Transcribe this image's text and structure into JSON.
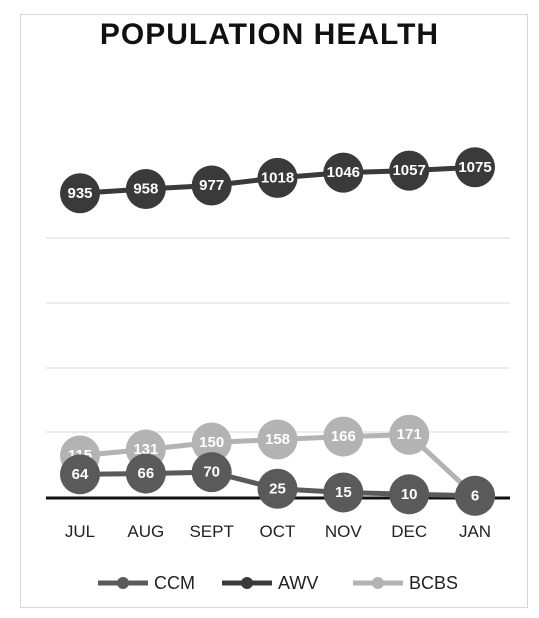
{
  "chart_data": {
    "type": "line",
    "title": "POPULATION HEALTH",
    "categories": [
      "JUL",
      "AUG",
      "SEPT",
      "OCT",
      "NOV",
      "DEC",
      "JAN"
    ],
    "series": [
      {
        "name": "CCM",
        "values": [
          64,
          66,
          70,
          25,
          15,
          10,
          6
        ],
        "color": "#5a5a5a"
      },
      {
        "name": "AWV",
        "values": [
          935,
          958,
          977,
          1018,
          1046,
          1057,
          1075
        ],
        "color": "#3a3a3a"
      },
      {
        "name": "BCBS",
        "values": [
          115,
          131,
          150,
          158,
          166,
          171,
          6
        ],
        "color": "#b3b3b3"
      }
    ],
    "data_labels": [
      [
        "64",
        "66",
        "70",
        "25",
        "15",
        "10",
        "6"
      ],
      [
        "935",
        "958",
        "977",
        "1018",
        "1046",
        "1057",
        "1075"
      ],
      [
        "115",
        "131",
        "150",
        "158",
        "166",
        "171",
        "6"
      ]
    ],
    "grid": true,
    "legend_position": "bottom"
  }
}
